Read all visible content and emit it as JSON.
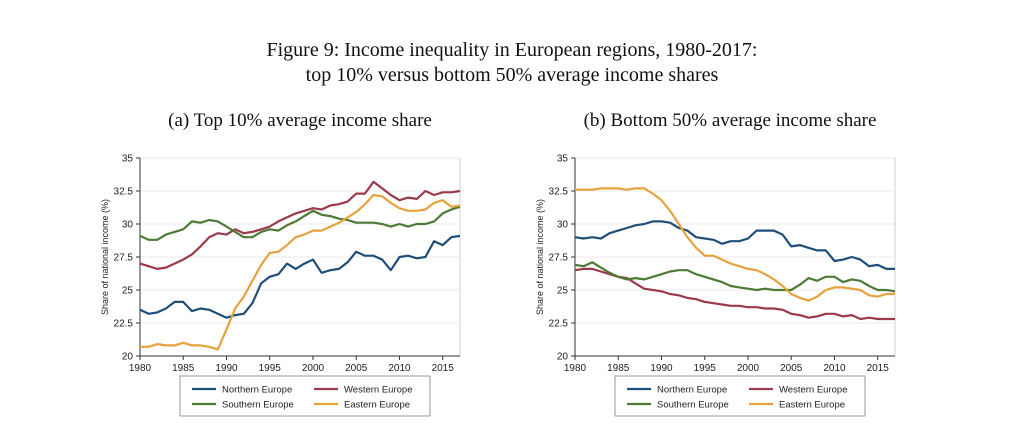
{
  "figure": {
    "title_line1": "Figure 9: Income inequality in European regions, 1980-2017:",
    "title_line2": "top 10% versus bottom 50% average income shares"
  },
  "colors": {
    "northern": "#1f4e79",
    "western": "#9b3a4a",
    "southern": "#4d7a35",
    "eastern": "#e6a23c"
  },
  "chart_data": [
    {
      "type": "line",
      "title": "(a) Top 10% average income share",
      "ylabel": "Share of national income (%)",
      "xlabel": "",
      "xlim": [
        1980,
        2017
      ],
      "ylim": [
        20,
        35
      ],
      "xticks": [
        1980,
        1985,
        1990,
        1995,
        2000,
        2005,
        2010,
        2015
      ],
      "yticks": [
        "20",
        "22.5",
        "25",
        "27.5",
        "30",
        "32.5",
        "35"
      ],
      "grid": true,
      "legend_position": "bottom",
      "x": [
        1980,
        1981,
        1982,
        1983,
        1984,
        1985,
        1986,
        1987,
        1988,
        1989,
        1990,
        1991,
        1992,
        1993,
        1994,
        1995,
        1996,
        1997,
        1998,
        1999,
        2000,
        2001,
        2002,
        2003,
        2004,
        2005,
        2006,
        2007,
        2008,
        2009,
        2010,
        2011,
        2012,
        2013,
        2014,
        2015,
        2016,
        2017
      ],
      "series": [
        {
          "name": "Northern Europe",
          "color": "northern",
          "values": [
            23.5,
            23.2,
            23.3,
            23.6,
            24.1,
            24.1,
            23.4,
            23.6,
            23.5,
            23.2,
            22.9,
            23.1,
            23.2,
            24.0,
            25.5,
            26.0,
            26.2,
            27.0,
            26.6,
            27.0,
            27.3,
            26.3,
            26.5,
            26.6,
            27.1,
            27.9,
            27.6,
            27.6,
            27.3,
            26.5,
            27.5,
            27.6,
            27.4,
            27.5,
            28.7,
            28.4,
            29.0,
            29.1
          ]
        },
        {
          "name": "Western Europe",
          "color": "western",
          "values": [
            27.0,
            26.8,
            26.6,
            26.7,
            27.0,
            27.3,
            27.7,
            28.3,
            29.0,
            29.3,
            29.2,
            29.6,
            29.3,
            29.4,
            29.6,
            29.8,
            30.2,
            30.5,
            30.8,
            31.0,
            31.2,
            31.1,
            31.4,
            31.5,
            31.7,
            32.3,
            32.3,
            33.2,
            32.7,
            32.2,
            31.8,
            32.0,
            31.9,
            32.5,
            32.2,
            32.4,
            32.4,
            32.5
          ]
        },
        {
          "name": "Southern Europe",
          "color": "southern",
          "values": [
            29.1,
            28.8,
            28.8,
            29.2,
            29.4,
            29.6,
            30.2,
            30.1,
            30.3,
            30.2,
            29.8,
            29.4,
            29.0,
            29.0,
            29.4,
            29.6,
            29.5,
            29.9,
            30.2,
            30.6,
            31.0,
            30.7,
            30.6,
            30.4,
            30.3,
            30.1,
            30.1,
            30.1,
            30.0,
            29.8,
            30.0,
            29.8,
            30.0,
            30.0,
            30.2,
            30.8,
            31.1,
            31.3
          ]
        },
        {
          "name": "Eastern Europe",
          "color": "eastern",
          "values": [
            20.7,
            20.7,
            20.9,
            20.8,
            20.8,
            21.0,
            20.8,
            20.8,
            20.7,
            20.5,
            22.0,
            23.6,
            24.5,
            25.7,
            26.9,
            27.8,
            27.9,
            28.4,
            29.0,
            29.2,
            29.5,
            29.5,
            29.8,
            30.1,
            30.5,
            30.9,
            31.5,
            32.2,
            32.1,
            31.6,
            31.2,
            31.0,
            31.0,
            31.1,
            31.6,
            31.8,
            31.3,
            31.4
          ]
        }
      ]
    },
    {
      "type": "line",
      "title": "(b) Bottom 50% average income share",
      "ylabel": "Share of national income (%)",
      "xlabel": "",
      "xlim": [
        1980,
        2017
      ],
      "ylim": [
        20,
        35
      ],
      "xticks": [
        1980,
        1985,
        1990,
        1995,
        2000,
        2005,
        2010,
        2015
      ],
      "yticks": [
        "20",
        "22.5",
        "25",
        "27.5",
        "30",
        "32.5",
        "35"
      ],
      "grid": true,
      "legend_position": "bottom",
      "x": [
        1980,
        1981,
        1982,
        1983,
        1984,
        1985,
        1986,
        1987,
        1988,
        1989,
        1990,
        1991,
        1992,
        1993,
        1994,
        1995,
        1996,
        1997,
        1998,
        1999,
        2000,
        2001,
        2002,
        2003,
        2004,
        2005,
        2006,
        2007,
        2008,
        2009,
        2010,
        2011,
        2012,
        2013,
        2014,
        2015,
        2016,
        2017
      ],
      "series": [
        {
          "name": "Northern Europe",
          "color": "northern",
          "values": [
            29.0,
            28.9,
            29.0,
            28.9,
            29.3,
            29.5,
            29.7,
            29.9,
            30.0,
            30.2,
            30.2,
            30.1,
            29.7,
            29.5,
            29.0,
            28.9,
            28.8,
            28.5,
            28.7,
            28.7,
            28.9,
            29.5,
            29.5,
            29.5,
            29.2,
            28.3,
            28.4,
            28.2,
            28.0,
            28.0,
            27.2,
            27.3,
            27.5,
            27.3,
            26.8,
            26.9,
            26.6,
            26.6
          ]
        },
        {
          "name": "Western Europe",
          "color": "western",
          "values": [
            26.5,
            26.6,
            26.6,
            26.4,
            26.2,
            26.0,
            25.9,
            25.5,
            25.1,
            25.0,
            24.9,
            24.7,
            24.6,
            24.4,
            24.3,
            24.1,
            24.0,
            23.9,
            23.8,
            23.8,
            23.7,
            23.7,
            23.6,
            23.6,
            23.5,
            23.2,
            23.1,
            22.9,
            23.0,
            23.2,
            23.2,
            23.0,
            23.1,
            22.8,
            22.9,
            22.8,
            22.8,
            22.8
          ]
        },
        {
          "name": "Southern Europe",
          "color": "southern",
          "values": [
            26.9,
            26.8,
            27.1,
            26.7,
            26.3,
            26.0,
            25.8,
            25.9,
            25.8,
            26.0,
            26.2,
            26.4,
            26.5,
            26.5,
            26.2,
            26.0,
            25.8,
            25.6,
            25.3,
            25.2,
            25.1,
            25.0,
            25.1,
            25.0,
            25.0,
            25.0,
            25.4,
            25.9,
            25.7,
            26.0,
            26.0,
            25.6,
            25.8,
            25.7,
            25.3,
            25.0,
            25.0,
            24.9
          ]
        },
        {
          "name": "Eastern Europe",
          "color": "eastern",
          "values": [
            32.6,
            32.6,
            32.6,
            32.7,
            32.7,
            32.7,
            32.6,
            32.7,
            32.7,
            32.3,
            31.8,
            31.0,
            30.0,
            29.0,
            28.2,
            27.6,
            27.6,
            27.3,
            27.0,
            26.8,
            26.6,
            26.5,
            26.2,
            25.8,
            25.3,
            24.7,
            24.4,
            24.2,
            24.5,
            25.0,
            25.2,
            25.2,
            25.1,
            25.0,
            24.6,
            24.5,
            24.7,
            24.7
          ]
        }
      ]
    }
  ]
}
